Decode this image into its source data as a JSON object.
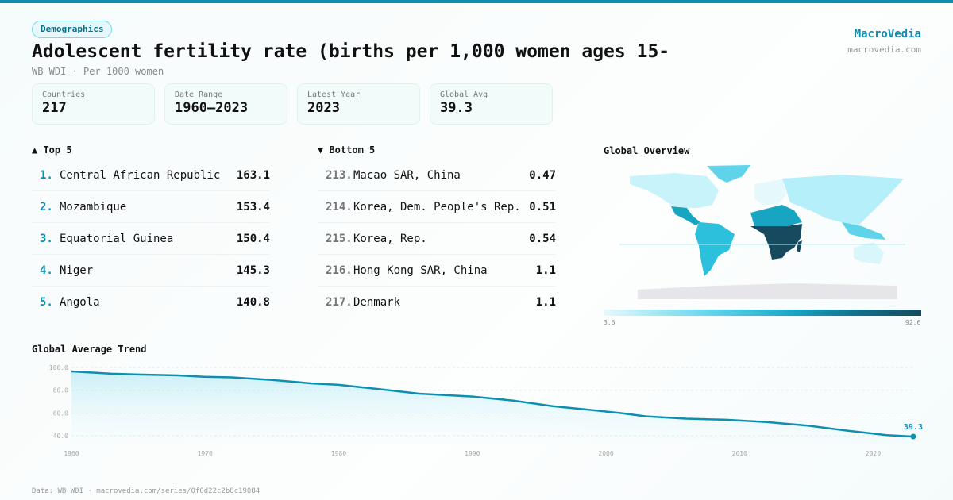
{
  "badge": "Demographics",
  "title": "Adolescent fertility rate (births per 1,000 women ages 15-",
  "subtitle": "WB WDI · Per 1000 women",
  "brand": {
    "name": "MacroVedia",
    "url": "macrovedia.com"
  },
  "stats": [
    {
      "label": "Countries",
      "value": "217"
    },
    {
      "label": "Date Range",
      "value": "1960–2023"
    },
    {
      "label": "Latest Year",
      "value": "2023"
    },
    {
      "label": "Global Avg",
      "value": "39.3"
    }
  ],
  "top": {
    "title": "▲ Top 5",
    "items": [
      {
        "rank": "1.",
        "name": "Central African Republic",
        "value": "163.1"
      },
      {
        "rank": "2.",
        "name": "Mozambique",
        "value": "153.4"
      },
      {
        "rank": "3.",
        "name": "Equatorial Guinea",
        "value": "150.4"
      },
      {
        "rank": "4.",
        "name": "Niger",
        "value": "145.3"
      },
      {
        "rank": "5.",
        "name": "Angola",
        "value": "140.8"
      }
    ]
  },
  "bottom": {
    "title": "▼ Bottom 5",
    "items": [
      {
        "rank": "213.",
        "name": "Macao SAR, China",
        "value": "0.47"
      },
      {
        "rank": "214.",
        "name": "Korea, Dem. People's Rep.",
        "value": "0.51"
      },
      {
        "rank": "215.",
        "name": "Korea, Rep.",
        "value": "0.54"
      },
      {
        "rank": "216.",
        "name": "Hong Kong SAR, China",
        "value": "1.1"
      },
      {
        "rank": "217.",
        "name": "Denmark",
        "value": "1.1"
      }
    ]
  },
  "map": {
    "title": "Global Overview",
    "scale_min": "3.6",
    "scale_max": "92.6",
    "colors": [
      "#e8f9fc",
      "#5fd3ea",
      "#17a5c2",
      "#12708a",
      "#174a5e"
    ]
  },
  "chart_data": {
    "type": "line",
    "title": "Global Average Trend",
    "x": [
      1960,
      1963,
      1965,
      1968,
      1970,
      1972,
      1975,
      1978,
      1980,
      1983,
      1986,
      1990,
      1993,
      1996,
      1999,
      2001,
      2003,
      2006,
      2009,
      2012,
      2015,
      2018,
      2021,
      2023
    ],
    "values": [
      96.5,
      94.5,
      93.8,
      93,
      91.8,
      91.3,
      89,
      86,
      84.7,
      81,
      77,
      74.5,
      71,
      66,
      62.5,
      60,
      57,
      55,
      54,
      52,
      49,
      44.5,
      40.5,
      39.3
    ],
    "yticks": [
      "100.0",
      "80.0",
      "60.0",
      "40.0"
    ],
    "xticks": [
      "1960",
      "1970",
      "1980",
      "1990",
      "2000",
      "2010",
      "2020"
    ],
    "ylim": [
      40,
      100
    ],
    "xlim": [
      1960,
      2023
    ],
    "last_label": "39.3",
    "color": "#0e8fb0"
  },
  "footer": "Data: WB WDI · macrovedia.com/series/0f0d22c2b8c19084"
}
